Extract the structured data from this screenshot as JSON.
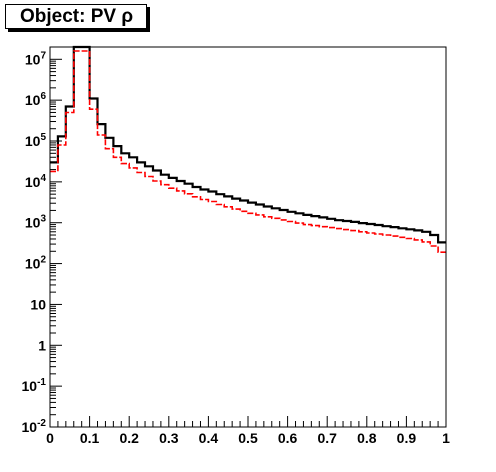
{
  "title": "Object: PV ρ",
  "chart_data": {
    "type": "histogram",
    "title": "Object: PV ρ",
    "xlabel": "",
    "ylabel": "",
    "xlim": [
      0,
      1
    ],
    "ylim": [
      0.01,
      20000000
    ],
    "y_scale": "log",
    "grid": false,
    "x_ticks": [
      {
        "value": 0,
        "label": "0"
      },
      {
        "value": 0.1,
        "label": "0.1"
      },
      {
        "value": 0.2,
        "label": "0.2"
      },
      {
        "value": 0.3,
        "label": "0.3"
      },
      {
        "value": 0.4,
        "label": "0.4"
      },
      {
        "value": 0.5,
        "label": "0.5"
      },
      {
        "value": 0.6,
        "label": "0.6"
      },
      {
        "value": 0.7,
        "label": "0.7"
      },
      {
        "value": 0.8,
        "label": "0.8"
      },
      {
        "value": 0.9,
        "label": "0.9"
      },
      {
        "value": 1,
        "label": "1"
      }
    ],
    "y_ticks": [
      {
        "value": 0.01,
        "base": "10",
        "exp": "-2"
      },
      {
        "value": 0.1,
        "base": "10",
        "exp": "-1"
      },
      {
        "value": 1,
        "base": "1",
        "exp": ""
      },
      {
        "value": 10,
        "base": "10",
        "exp": ""
      },
      {
        "value": 100,
        "base": "10",
        "exp": "2"
      },
      {
        "value": 1000,
        "base": "10",
        "exp": "3"
      },
      {
        "value": 10000,
        "base": "10",
        "exp": "4"
      },
      {
        "value": 100000,
        "base": "10",
        "exp": "5"
      },
      {
        "value": 1000000,
        "base": "10",
        "exp": "6"
      },
      {
        "value": 10000000,
        "base": "10",
        "exp": "7"
      }
    ],
    "bin_edges_start": 0,
    "bin_width": 0.02,
    "series": [
      {
        "style": "solid",
        "color": "#000000",
        "values": [
          30000,
          130000,
          700000,
          20000000,
          20000000,
          1100000,
          260000,
          120000,
          75000,
          50000,
          40000,
          30000,
          24000,
          19000,
          15000,
          12500,
          10500,
          9000,
          7500,
          6500,
          5800,
          5000,
          4400,
          3900,
          3500,
          3100,
          2800,
          2500,
          2250,
          2050,
          1850,
          1700,
          1550,
          1450,
          1350,
          1250,
          1150,
          1100,
          1050,
          980,
          930,
          880,
          820,
          780,
          730,
          690,
          650,
          600,
          500,
          330
        ]
      },
      {
        "style": "dashed",
        "color": "#ff0000",
        "values": [
          18000,
          80000,
          500000,
          16000000,
          16000000,
          600000,
          140000,
          65000,
          40000,
          28000,
          22000,
          17000,
          13500,
          10500,
          8500,
          7000,
          6000,
          5100,
          4300,
          3700,
          3300,
          2800,
          2450,
          2150,
          1900,
          1700,
          1550,
          1400,
          1280,
          1170,
          1070,
          980,
          900,
          850,
          800,
          760,
          720,
          680,
          640,
          600,
          560,
          530,
          500,
          470,
          440,
          410,
          380,
          340,
          270,
          190
        ]
      }
    ]
  }
}
